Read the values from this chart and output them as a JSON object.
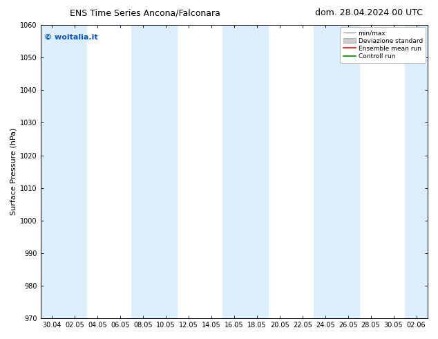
{
  "title_left": "ENS Time Series Ancona/Falconara",
  "title_right": "dom. 28.04.2024 00 UTC",
  "ylabel": "Surface Pressure (hPa)",
  "ylim": [
    970,
    1060
  ],
  "yticks": [
    970,
    980,
    990,
    1000,
    1010,
    1020,
    1030,
    1040,
    1050,
    1060
  ],
  "xtick_labels": [
    "30.04",
    "02.05",
    "04.05",
    "06.05",
    "08.05",
    "10.05",
    "12.05",
    "14.05",
    "16.05",
    "18.05",
    "20.05",
    "22.05",
    "24.05",
    "26.05",
    "28.05",
    "30.05",
    "02.06"
  ],
  "watermark": "© woitalia.it",
  "watermark_color": "#0055cc",
  "background_color": "#ffffff",
  "band_color": "#ddeeff",
  "legend_labels": [
    "min/max",
    "Deviazione standard",
    "Ensemble mean run",
    "Controll run"
  ],
  "legend_colors": [
    "#999999",
    "#bbbbbb",
    "#ff0000",
    "#008800"
  ],
  "title_fontsize": 9,
  "tick_fontsize": 7,
  "ylabel_fontsize": 8,
  "watermark_fontsize": 8
}
